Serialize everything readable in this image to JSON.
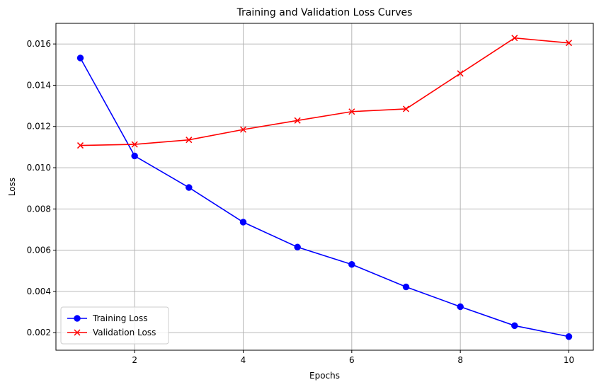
{
  "chart_data": {
    "type": "line",
    "title": "Training and Validation Loss Curves",
    "xlabel": "Epochs",
    "ylabel": "Loss",
    "x": [
      1,
      2,
      3,
      4,
      5,
      6,
      7,
      8,
      9,
      10
    ],
    "xlim": [
      0.55,
      10.45
    ],
    "ylim": [
      0.00115,
      0.017
    ],
    "xticks": [
      2,
      4,
      6,
      8,
      10
    ],
    "xtick_labels": [
      "2",
      "4",
      "6",
      "8",
      "10"
    ],
    "yticks": [
      0.002,
      0.004,
      0.006,
      0.008,
      0.01,
      0.012,
      0.014,
      0.016
    ],
    "ytick_labels": [
      "0.002",
      "0.004",
      "0.006",
      "0.008",
      "0.010",
      "0.012",
      "0.014",
      "0.016"
    ],
    "grid": true,
    "legend_position": "bottom-left",
    "series": [
      {
        "name": "Training Loss",
        "color": "#0000ff",
        "marker": "circle",
        "values": [
          0.01532,
          0.01057,
          0.00904,
          0.00736,
          0.00615,
          0.00531,
          0.00422,
          0.00326,
          0.00234,
          0.00181
        ]
      },
      {
        "name": "Validation Loss",
        "color": "#ff0000",
        "marker": "x",
        "values": [
          0.01108,
          0.01113,
          0.01135,
          0.01185,
          0.01229,
          0.01272,
          0.01285,
          0.01457,
          0.01629,
          0.01605
        ]
      }
    ]
  }
}
